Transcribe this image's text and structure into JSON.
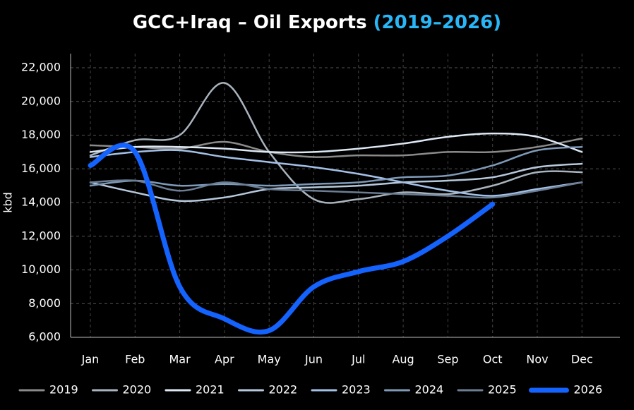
{
  "chart_data": {
    "type": "line",
    "title": "GCC+Iraq – Oil Exports",
    "title_highlight": "(2019–2026)",
    "y_label": "kbd",
    "categories": [
      "Jan",
      "Feb",
      "Mar",
      "Apr",
      "May",
      "Jun",
      "Jul",
      "Aug",
      "Sep",
      "Oct",
      "Nov",
      "Dec"
    ],
    "ylim": [
      6000,
      22000
    ],
    "yticks": [
      {
        "value": 6000,
        "label": "6,000"
      },
      {
        "value": 8000,
        "label": "8,000"
      },
      {
        "value": 10000,
        "label": "10,000"
      },
      {
        "value": 12000,
        "label": "12,000"
      },
      {
        "value": 14000,
        "label": "14,000"
      },
      {
        "value": 16000,
        "label": "16,000"
      },
      {
        "value": 18000,
        "label": "18,000"
      },
      {
        "value": 20000,
        "label": "20,000"
      },
      {
        "value": 22000,
        "label": "22,000"
      }
    ],
    "grid": true,
    "legend": "bottom",
    "series": [
      {
        "name": "2019",
        "color": "#8a8a8a",
        "values": [
          17400,
          17300,
          17200,
          17600,
          17000,
          16700,
          16800,
          16800,
          17000,
          17000,
          17300,
          17800
        ]
      },
      {
        "name": "2020",
        "color": "#a9b4bf",
        "values": [
          16800,
          17700,
          18000,
          21100,
          17000,
          14200,
          14200,
          14600,
          14500,
          15000,
          15800,
          15800
        ]
      },
      {
        "name": "2021",
        "color": "#dde8f4",
        "values": [
          17000,
          17300,
          17300,
          17200,
          17000,
          17000,
          17200,
          17500,
          17900,
          18100,
          17900,
          17000
        ]
      },
      {
        "name": "2022",
        "color": "#b6c8dc",
        "values": [
          15200,
          14600,
          14100,
          14300,
          14800,
          14900,
          15000,
          15200,
          15300,
          15500,
          16100,
          16300
        ]
      },
      {
        "name": "2023",
        "color": "#a3c0e6",
        "values": [
          16700,
          17000,
          17100,
          16700,
          16400,
          16100,
          15700,
          15200,
          14700,
          14400,
          14800,
          15200
        ]
      },
      {
        "name": "2024",
        "color": "#7e9ab8",
        "values": [
          15000,
          15300,
          15000,
          15100,
          15000,
          15100,
          15200,
          15500,
          15600,
          16200,
          17100,
          17300
        ]
      },
      {
        "name": "2025",
        "color": "#6b7e94",
        "values": [
          15200,
          15300,
          14700,
          15200,
          14800,
          14700,
          14600,
          14500,
          14400,
          14300,
          14700,
          15200
        ]
      },
      {
        "name": "2026",
        "color": "#1463ff",
        "values": [
          16200,
          17000,
          9000,
          7100,
          6400,
          9000,
          9900,
          10500,
          12000,
          13900,
          null,
          null
        ]
      }
    ]
  }
}
